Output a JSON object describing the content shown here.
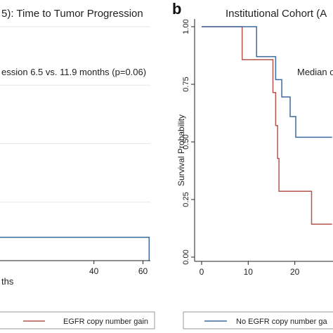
{
  "figure": {
    "panel_a_title_fragment": "5): Time to Tumor Progression",
    "panel_b_letter": "b",
    "panel_b_title_fragment": "Institutional Cohort (A",
    "colors": {
      "gain": "#b5544b",
      "no_gain": "#3d6a9e",
      "axis": "#222222",
      "grid": "#e6e6e6",
      "text": "#222222"
    }
  },
  "chart_data": [
    {
      "type": "line",
      "panel": "a",
      "title": "5): Time to Tumor Progression",
      "annotation": "ession 6.5 vs. 11.9 months (p=0.06)",
      "xlabel": "ths",
      "x_ticks": [
        40,
        60
      ],
      "xlim": [
        0,
        63
      ],
      "ylim": [
        0,
        1
      ],
      "grid": true,
      "series": [
        {
          "id": "no_gain_a",
          "color": "#3d6a9e",
          "x": [
            0,
            62.5,
            62.5
          ],
          "y": [
            0.1,
            0.1,
            0.0
          ]
        }
      ],
      "legend": {
        "entries": [
          {
            "label": "EGFR copy number gain",
            "color": "#b5544b"
          }
        ]
      }
    },
    {
      "type": "line",
      "panel": "b",
      "title": "Institutional Cohort (A",
      "annotation": "Median o",
      "ylabel": "Survival Probability",
      "x_ticks": [
        0,
        10,
        20
      ],
      "y_ticks": [
        "0.00",
        "0.25",
        "0.50",
        "0.75",
        "1.00"
      ],
      "y_tick_values": [
        0,
        0.25,
        0.5,
        0.75,
        1
      ],
      "xlim": [
        0,
        28
      ],
      "ylim": [
        0,
        1
      ],
      "grid": false,
      "series": [
        {
          "id": "gain_b",
          "color": "#b5544b",
          "x": [
            0,
            8.7,
            8.7,
            15.3,
            15.3,
            15.9,
            15.9,
            16.3,
            16.3,
            16.6,
            16.6,
            23.6,
            23.6,
            28
          ],
          "y": [
            1,
            1,
            0.857,
            0.857,
            0.714,
            0.714,
            0.571,
            0.571,
            0.428,
            0.428,
            0.286,
            0.286,
            0.143,
            0.143
          ]
        },
        {
          "id": "no_gain_b",
          "color": "#3d6a9e",
          "x": [
            0,
            11.8,
            11.8,
            15.9,
            15.9,
            17.2,
            17.2,
            19.0,
            19.0,
            20.2,
            20.2,
            21.2,
            21.2,
            28
          ],
          "y": [
            1,
            1,
            0.87,
            0.87,
            0.77,
            0.77,
            0.695,
            0.695,
            0.61,
            0.61,
            0.52,
            0.52,
            0.52,
            0.52
          ]
        }
      ],
      "legend": {
        "entries": [
          {
            "label": "No EGFR copy number ga",
            "color": "#3d6a9e"
          }
        ]
      }
    }
  ]
}
